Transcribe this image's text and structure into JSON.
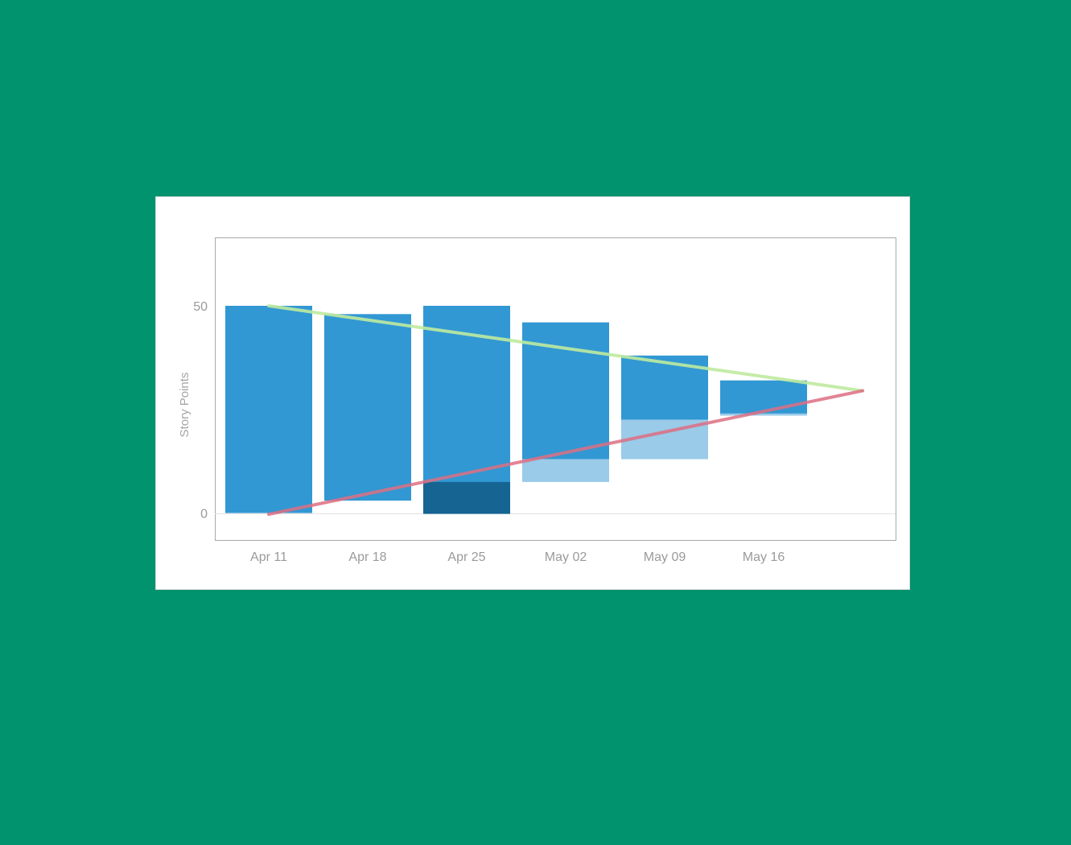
{
  "background_color": "#01936e",
  "chart_data": {
    "type": "bar",
    "ylabel": "Story Points",
    "xlabel": "",
    "title": "",
    "ylim": [
      -6.5,
      66.5
    ],
    "yticks": [
      0,
      50
    ],
    "grid": "baseline only",
    "legend": "none",
    "categories": [
      "Apr 11",
      "Apr 18",
      "Apr 25",
      "May 02",
      "May 09",
      "May 16"
    ],
    "series": [
      {
        "values": [
          50,
          48,
          50,
          46,
          38,
          32
        ],
        "color": "#3198d3",
        "role": "remaining (top)"
      },
      {
        "values": [
          0,
          3,
          0,
          13,
          22.5,
          24
        ],
        "color": "#3198d3",
        "role": "remaining (bottom)"
      },
      {
        "values": [
          0,
          3,
          0,
          7.5,
          13,
          23.5
        ],
        "color": "#9acbe8",
        "role": "light segment lower bound"
      },
      {
        "values": [
          0,
          0,
          7.5,
          0,
          0,
          0
        ],
        "color": "#156492",
        "role": "dark segment height"
      }
    ],
    "lines": [
      {
        "color": "#bfeaa0",
        "points": [
          [
            "Apr 11",
            50
          ],
          [
            "end",
            29.5
          ]
        ]
      },
      {
        "color": "#dd6f82",
        "points": [
          [
            "Apr 11",
            -0.3
          ],
          [
            "end",
            29.5
          ]
        ]
      }
    ]
  }
}
